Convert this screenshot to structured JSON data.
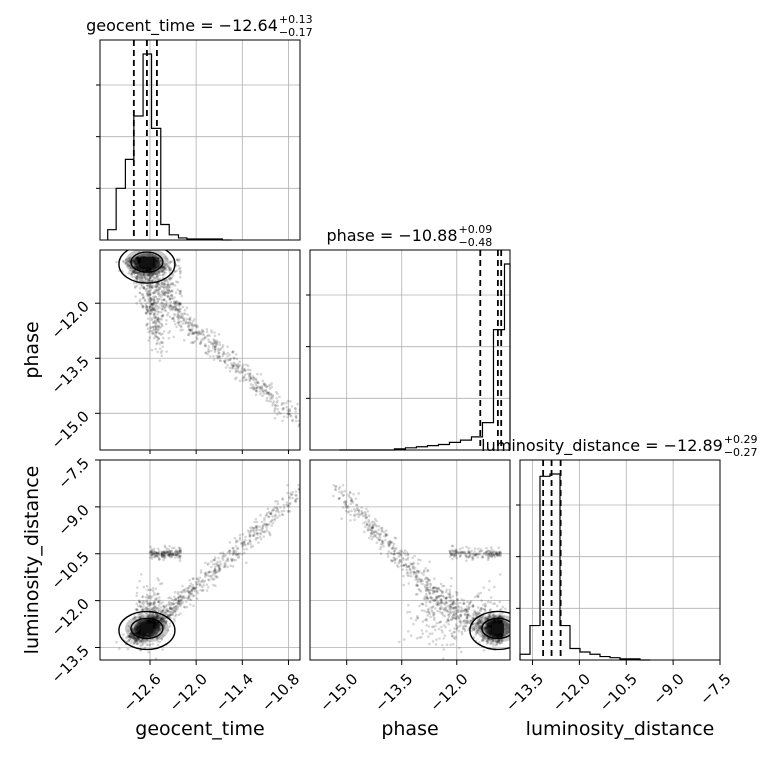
{
  "chart_data": {
    "type": "corner",
    "parameters": [
      {
        "name": "geocent_time",
        "axis_label": "geocent_time",
        "title": {
          "main": "geocent_time = −12.64",
          "plus": "+0.13",
          "minus": "−0.17"
        },
        "median": -12.64,
        "lower": -12.81,
        "upper": -12.51,
        "range": [
          -13.25,
          -10.65
        ],
        "ticks": [
          -12.6,
          -12.0,
          -11.4,
          -10.8
        ],
        "tick_labels": [
          "−12.6",
          "−12.0",
          "−11.4",
          "−10.8"
        ],
        "hist_bins": [
          -13.15,
          -13.04,
          -12.92,
          -12.81,
          -12.69,
          -12.58,
          -12.46,
          -12.35,
          -12.23,
          -12.12,
          -12.0,
          -11.89,
          -11.77,
          -11.66,
          -11.54
        ],
        "hist_counts": [
          10,
          50,
          78,
          120,
          180,
          108,
          15,
          5,
          2,
          1,
          1,
          1,
          1,
          0
        ]
      },
      {
        "name": "phase",
        "axis_label": "phase",
        "title": {
          "main": "phase = −10.88",
          "plus": "+0.09",
          "minus": "−0.48"
        },
        "median": -10.88,
        "lower": -11.36,
        "upper": -10.79,
        "range": [
          -16.0,
          -10.55
        ],
        "ticks": [
          -15.0,
          -13.5,
          -12.0
        ],
        "tick_labels": [
          "−15.0",
          "−13.5",
          "−12.0"
        ],
        "hist_bins": [
          -15.2,
          -14.9,
          -14.6,
          -14.3,
          -14.0,
          -13.7,
          -13.4,
          -13.1,
          -12.8,
          -12.5,
          -12.2,
          -11.9,
          -11.6,
          -11.3,
          -11.0,
          -10.7,
          -10.55
        ],
        "hist_counts": [
          0,
          0,
          0,
          0,
          0,
          1,
          2,
          3,
          4,
          5,
          7,
          9,
          12,
          25,
          110,
          170
        ]
      },
      {
        "name": "luminosity_distance",
        "axis_label": "luminosity_distance",
        "title": {
          "main": "luminosity_distance = −12.89",
          "plus": "+0.29",
          "minus": "−0.27"
        },
        "median": -12.89,
        "lower": -13.16,
        "upper": -12.6,
        "range": [
          -13.9,
          -7.5
        ],
        "ticks": [
          -13.5,
          -12.0,
          -10.5,
          -9.0,
          -7.5
        ],
        "tick_labels": [
          "−13.5",
          "−12.0",
          "−10.5",
          "−9.0",
          "−7.5"
        ],
        "hist_bins": [
          -13.9,
          -13.58,
          -13.26,
          -12.94,
          -12.62,
          -12.3,
          -11.98,
          -11.66,
          -11.34,
          -11.02,
          -10.7,
          -10.38,
          -10.06,
          -9.74
        ],
        "hist_counts": [
          5,
          30,
          160,
          162,
          30,
          10,
          7,
          5,
          3,
          2,
          1,
          1,
          0
        ]
      }
    ],
    "grid": true,
    "contours": true,
    "quantile_lines": "dashed"
  }
}
